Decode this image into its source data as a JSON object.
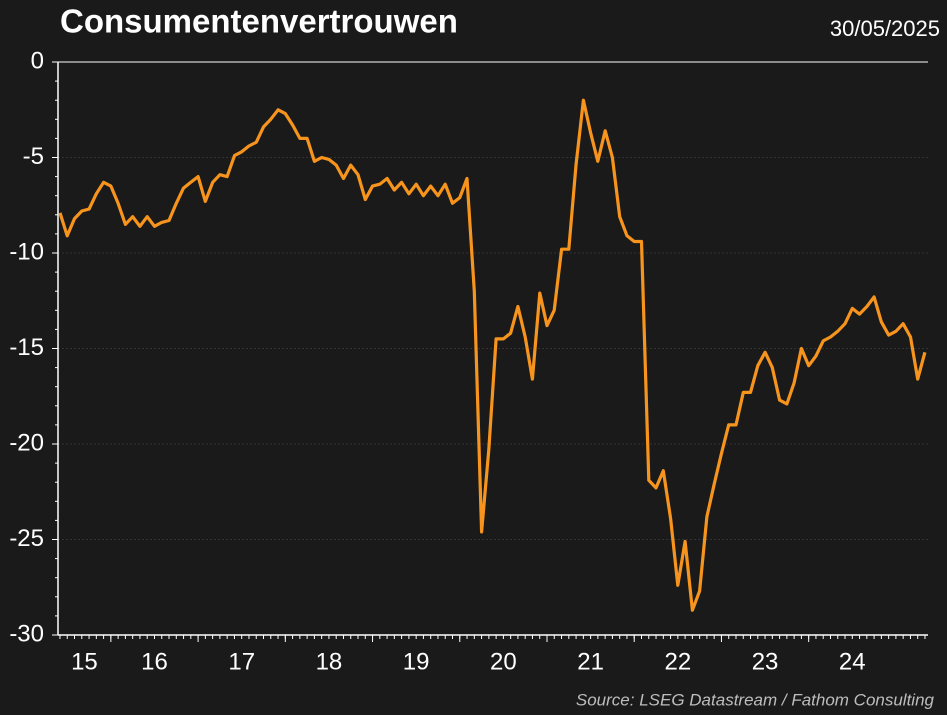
{
  "chart_data": {
    "type": "line",
    "title": "Consumentenvertrouwen",
    "date": "30/05/2025",
    "source": "Source: LSEG Datastream / Fathom Consulting",
    "x": [
      15.417,
      15.5,
      15.583,
      15.667,
      15.75,
      15.833,
      15.917,
      16,
      16.083,
      16.167,
      16.25,
      16.333,
      16.417,
      16.5,
      16.583,
      16.667,
      16.75,
      16.833,
      16.917,
      17,
      17.083,
      17.167,
      17.25,
      17.333,
      17.417,
      17.5,
      17.583,
      17.667,
      17.75,
      17.833,
      17.917,
      18,
      18.083,
      18.167,
      18.25,
      18.333,
      18.417,
      18.5,
      18.583,
      18.667,
      18.75,
      18.833,
      18.917,
      19,
      19.083,
      19.167,
      19.25,
      19.333,
      19.417,
      19.5,
      19.583,
      19.667,
      19.75,
      19.833,
      19.917,
      20,
      20.083,
      20.167,
      20.25,
      20.333,
      20.417,
      20.5,
      20.583,
      20.667,
      20.75,
      20.833,
      20.917,
      21,
      21.083,
      21.167,
      21.25,
      21.333,
      21.417,
      21.5,
      21.583,
      21.667,
      21.75,
      21.833,
      21.917,
      22,
      22.083,
      22.167,
      22.25,
      22.333,
      22.417,
      22.5,
      22.583,
      22.667,
      22.75,
      22.833,
      22.917,
      23,
      23.083,
      23.167,
      23.25,
      23.333,
      23.417,
      23.5,
      23.583,
      23.667,
      23.75,
      23.833,
      23.917,
      24,
      24.083,
      24.167,
      24.25,
      24.333,
      24.417,
      24.5,
      24.583,
      24.667,
      24.75,
      24.833,
      24.917,
      25,
      25.083,
      25.167,
      25.25,
      25.333
    ],
    "series": [
      {
        "color": "#f7941d",
        "values": [
          -7.9,
          -9.1,
          -8.2,
          -7.8,
          -7.7,
          -6.9,
          -6.3,
          -6.5,
          -7.4,
          -8.5,
          -8.1,
          -8.6,
          -8.1,
          -8.6,
          -8.4,
          -8.3,
          -7.4,
          -6.6,
          -6.3,
          -6.0,
          -7.3,
          -6.3,
          -5.9,
          -6.0,
          -4.9,
          -4.7,
          -4.4,
          -4.2,
          -3.4,
          -3.0,
          -2.5,
          -2.7,
          -3.3,
          -4.0,
          -4.0,
          -5.2,
          -5.0,
          -5.1,
          -5.4,
          -6.1,
          -5.4,
          -5.9,
          -7.2,
          -6.5,
          -6.4,
          -6.1,
          -6.7,
          -6.3,
          -6.9,
          -6.4,
          -7.0,
          -6.5,
          -7.0,
          -6.4,
          -7.4,
          -7.1,
          -6.1,
          -12,
          -24.6,
          -20.3,
          -14.5,
          -14.5,
          -14.2,
          -12.8,
          -14.4,
          -16.6,
          -12.1,
          -13.8,
          -13.0,
          -9.8,
          -9.8,
          -5.4,
          -2.0,
          -3.7,
          -5.2,
          -3.6,
          -5.0,
          -8.1,
          -9.1,
          -9.4,
          -9.4,
          -21.9,
          -22.3,
          -21.4,
          -23.9,
          -27.4,
          -25.1,
          -28.7,
          -27.7,
          -23.8,
          -22.1,
          -20.5,
          -19.0,
          -19.0,
          -17.3,
          -17.3,
          -15.9,
          -15.2,
          -16.0,
          -17.7,
          -17.9,
          -16.8,
          -15.0,
          -15.9,
          -15.4,
          -14.6,
          -14.4,
          -14.1,
          -13.7,
          -12.9,
          -13.2,
          -12.8,
          -12.3,
          -13.6,
          -14.3,
          -14.1,
          -13.7,
          -14.4,
          -16.6,
          -15.2
        ]
      }
    ],
    "xlim": [
      15.394,
      25.368
    ],
    "xticks": [
      {
        "value": 15,
        "label": "15"
      },
      {
        "value": 16,
        "label": "16"
      },
      {
        "value": 17,
        "label": "17"
      },
      {
        "value": 18,
        "label": "18"
      },
      {
        "value": 19,
        "label": "19"
      },
      {
        "value": 20,
        "label": "20"
      },
      {
        "value": 21,
        "label": "21"
      },
      {
        "value": 22,
        "label": "22"
      },
      {
        "value": 23,
        "label": "23"
      },
      {
        "value": 24,
        "label": "24"
      }
    ],
    "ylim": [
      -30,
      0
    ],
    "yticks": [
      0,
      -5,
      -10,
      -15,
      -20,
      -25,
      -30
    ],
    "grid": true
  }
}
